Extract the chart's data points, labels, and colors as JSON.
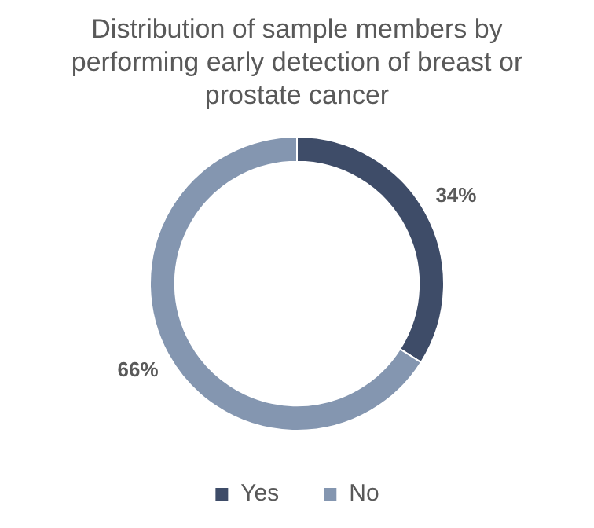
{
  "chart_data": {
    "type": "donut",
    "title": "Distribution of sample members by performing early detection of breast or prostate cancer",
    "categories": [
      "Yes",
      "No"
    ],
    "values": [
      34,
      66
    ],
    "colors": [
      "#3e4c68",
      "#8496b0"
    ],
    "value_labels": [
      "34%",
      "66%"
    ],
    "legend": "bottom"
  }
}
